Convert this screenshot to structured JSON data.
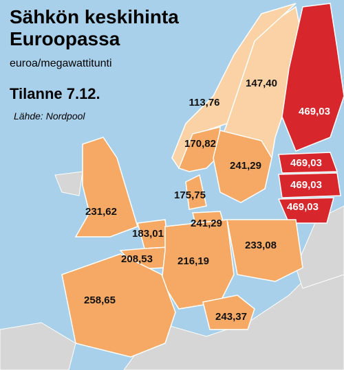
{
  "header": {
    "title_lines": [
      "Sähkön keskihinta",
      "Euroopassa"
    ],
    "subtitle": "euroa/megawattitunti",
    "date": "Tilanne 7.12.",
    "source": "Lähde: Nordpool"
  },
  "regions": [
    {
      "label": "147,40"
    },
    {
      "label": "113,76"
    },
    {
      "label": "469,03"
    },
    {
      "label": "170,82"
    },
    {
      "label": "241,29"
    },
    {
      "label": "469,03"
    },
    {
      "label": "469,03"
    },
    {
      "label": "469,03"
    },
    {
      "label": "231,62"
    },
    {
      "label": "175,75"
    },
    {
      "label": "241,29"
    },
    {
      "label": "183,01"
    },
    {
      "label": "208,53"
    },
    {
      "label": "216,19"
    },
    {
      "label": "233,08"
    },
    {
      "label": "258,65"
    },
    {
      "label": "243,37"
    }
  ]
}
